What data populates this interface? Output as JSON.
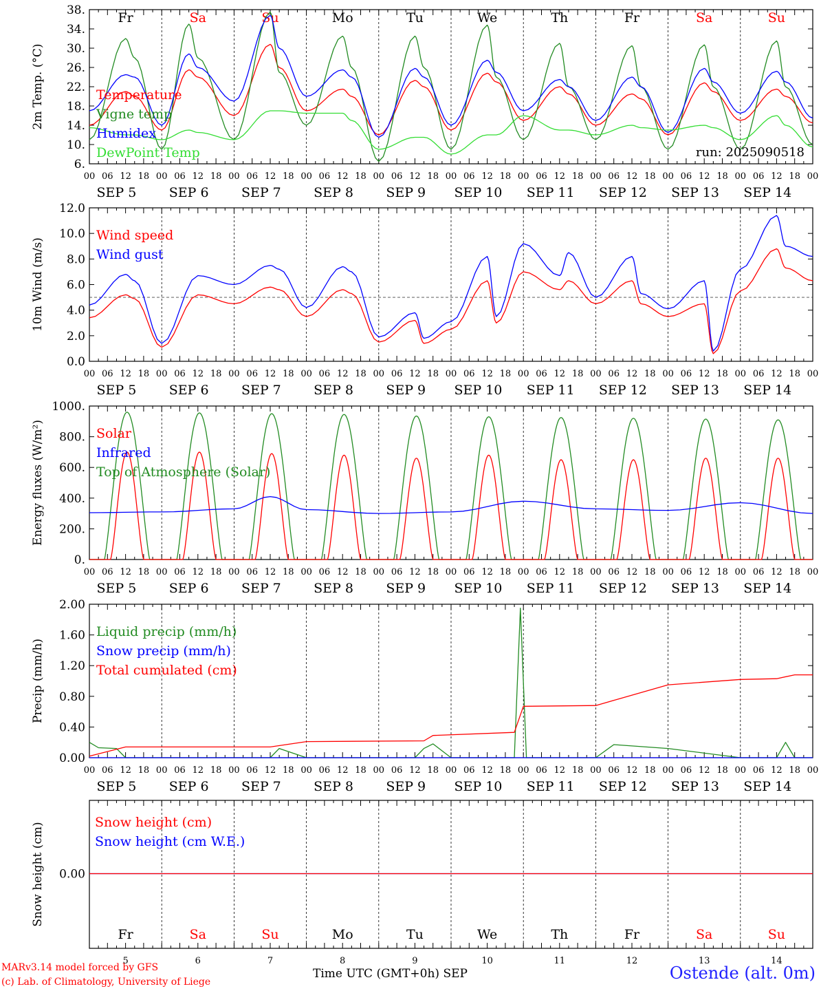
{
  "chart_data": [
    {
      "type": "line",
      "ylabel": "2m Temp. (°C)",
      "ylim": [
        6,
        38
      ],
      "yticks": [
        "6.",
        "10.",
        "14.",
        "18.",
        "22.",
        "26.",
        "30.",
        "34.",
        "38."
      ],
      "annotation": "run: 2025090518",
      "days": [
        {
          "label": "Fr",
          "color": "#000000"
        },
        {
          "label": "Sa",
          "color": "#ff0000"
        },
        {
          "label": "Su",
          "color": "#ff0000"
        },
        {
          "label": "Mo",
          "color": "#000000"
        },
        {
          "label": "Tu",
          "color": "#000000"
        },
        {
          "label": "We",
          "color": "#000000"
        },
        {
          "label": "Th",
          "color": "#000000"
        },
        {
          "label": "Fr",
          "color": "#000000"
        },
        {
          "label": "Sa",
          "color": "#ff0000"
        },
        {
          "label": "Su",
          "color": "#ff0000"
        }
      ],
      "x_hours": [
        0,
        12,
        15,
        24,
        33,
        36,
        48,
        60,
        63,
        72,
        84,
        87,
        96,
        108,
        111,
        120,
        132,
        135,
        144,
        156,
        159,
        168,
        180,
        183,
        192,
        204,
        207,
        216,
        228,
        231,
        240
      ],
      "series": [
        {
          "name": "Temperature",
          "color": "#ff0000",
          "values": [
            14,
            21,
            20,
            13,
            25.5,
            24,
            16,
            30.8,
            26,
            17,
            21.5,
            20,
            12,
            23.3,
            22,
            13,
            24.8,
            23,
            15,
            22,
            20.5,
            14,
            20.5,
            19.5,
            12,
            22.8,
            21,
            15,
            21.5,
            20,
            14.5
          ]
        },
        {
          "name": "Vigne temp",
          "color": "#228b22",
          "values": [
            11,
            32,
            28,
            9,
            35,
            28,
            11,
            37.5,
            25,
            14,
            32.5,
            26,
            6.5,
            32.5,
            26,
            9,
            34.8,
            24,
            11,
            31,
            22,
            11,
            30.5,
            22,
            9,
            30.7,
            22,
            9,
            31.5,
            22,
            10
          ]
        },
        {
          "name": "Humidex",
          "color": "#0000ff",
          "values": [
            17,
            24.5,
            24,
            14,
            28.8,
            26,
            19,
            36.8,
            30,
            20,
            25.5,
            24,
            11.5,
            25.8,
            24,
            14,
            27.5,
            25,
            17,
            23.5,
            22,
            15,
            24,
            22,
            12.5,
            25.8,
            23,
            16.5,
            25.2,
            23,
            15.5
          ]
        },
        {
          "name": "DewPoint Temp",
          "color": "#33dd33",
          "values": [
            13.5,
            12,
            12,
            11,
            13,
            12.5,
            11,
            17,
            17,
            16.5,
            16.5,
            15,
            9,
            11.5,
            11.5,
            8,
            12,
            12,
            16,
            13,
            13,
            12,
            14,
            13.5,
            13,
            14,
            13.5,
            11,
            16,
            14,
            9.5
          ]
        }
      ]
    },
    {
      "type": "line",
      "ylabel": "10m Wind (m/s)",
      "ylim": [
        0,
        12
      ],
      "yticks": [
        "0.0",
        "2.0",
        "4.0",
        "6.0",
        "8.0",
        "10.0",
        "12.0"
      ],
      "ref_line": 5,
      "x_hours": [
        0,
        12,
        15,
        24,
        36,
        48,
        60,
        63,
        72,
        84,
        87,
        96,
        108,
        111,
        120,
        132,
        135,
        144,
        156,
        159,
        168,
        180,
        183,
        192,
        204,
        207,
        216,
        228,
        231,
        240
      ],
      "series": [
        {
          "name": "Wind speed",
          "color": "#ff0000",
          "values": [
            3.4,
            5.2,
            4.9,
            1.1,
            5.2,
            4.5,
            5.8,
            5.6,
            3.5,
            5.6,
            5.3,
            1.5,
            3.2,
            1.4,
            2.5,
            6.3,
            3,
            7,
            5.6,
            6.3,
            4.5,
            6.3,
            4.5,
            3.5,
            4.5,
            0.6,
            5.5,
            8.8,
            7.3,
            6.3
          ]
        },
        {
          "name": "Wind gust",
          "color": "#0000ff",
          "values": [
            4.4,
            6.8,
            6.3,
            1.4,
            6.7,
            6,
            7.5,
            7.2,
            4.2,
            7.4,
            7,
            1.9,
            3.8,
            1.8,
            3.1,
            8.2,
            3.5,
            9.2,
            6.7,
            8.5,
            5,
            8.2,
            5.3,
            4.1,
            6.3,
            0.8,
            7.2,
            11.4,
            9,
            8.2
          ]
        }
      ]
    },
    {
      "type": "line",
      "ylabel": "Energy fluxes (W/m²)",
      "ylim": [
        0,
        1000
      ],
      "yticks": [
        "0.",
        "200.",
        "400.",
        "600.",
        "800.",
        "1000."
      ],
      "series": [
        {
          "name": "Solar",
          "color": "#ff0000",
          "day_peaks": [
            700,
            700,
            690,
            680,
            660,
            680,
            650,
            650,
            660,
            660
          ]
        },
        {
          "name": "Infrared",
          "color": "#0000ff",
          "x_hours": [
            0,
            24,
            48,
            60,
            72,
            96,
            120,
            144,
            168,
            192,
            216,
            240
          ],
          "values": [
            305,
            310,
            330,
            410,
            325,
            300,
            310,
            380,
            330,
            320,
            370,
            300
          ]
        },
        {
          "name": "Top of Atmosphere (Solar)",
          "color": "#228b22",
          "day_peaks": [
            960,
            955,
            950,
            945,
            935,
            930,
            925,
            920,
            915,
            910
          ]
        }
      ]
    },
    {
      "type": "line",
      "ylabel": "Precip (mm/h)",
      "ylim": [
        0,
        2
      ],
      "yticks": [
        "0.00",
        "0.40",
        "0.80",
        "1.20",
        "1.60",
        "2.00"
      ],
      "series": [
        {
          "name": "Liquid precip (mm/h)",
          "color": "#228b22",
          "x_hours": [
            0,
            3,
            9,
            12,
            60,
            63,
            72,
            108,
            111,
            114,
            120,
            141,
            143,
            145,
            168,
            174,
            192,
            216,
            228,
            231,
            234,
            240
          ],
          "values": [
            0.2,
            0.13,
            0.12,
            0,
            0,
            0.12,
            0,
            0,
            0.12,
            0.18,
            0,
            0,
            1.95,
            0,
            0,
            0.17,
            0.12,
            0,
            0,
            0.2,
            0,
            0
          ]
        },
        {
          "name": "Snow precip (mm/h)",
          "color": "#0000ff",
          "x_hours": [
            0,
            240
          ],
          "values": [
            0,
            0
          ]
        },
        {
          "name": "Total cumulated (cm)",
          "color": "#ff0000",
          "x_hours": [
            0,
            12,
            60,
            72,
            111,
            114,
            141,
            144,
            168,
            192,
            216,
            228,
            234,
            240
          ],
          "values": [
            0.02,
            0.14,
            0.14,
            0.21,
            0.22,
            0.29,
            0.33,
            0.67,
            0.68,
            0.95,
            1.02,
            1.03,
            1.08,
            1.08
          ]
        }
      ]
    },
    {
      "type": "line",
      "ylabel": "Snow height (cm)",
      "yticks": [
        "0.00"
      ],
      "series": [
        {
          "name": "Snow height (cm)",
          "color": "#ff0000",
          "x_hours": [
            0,
            240
          ],
          "values": [
            0,
            0
          ]
        },
        {
          "name": "Snow height (cm W.E.)",
          "color": "#0000ff",
          "x_hours": [
            0,
            240
          ],
          "values": [
            0,
            0
          ]
        }
      ]
    }
  ],
  "date_labels": [
    "SEP 5",
    "SEP 6",
    "SEP 7",
    "SEP 8",
    "SEP 9",
    "SEP 10",
    "SEP 11",
    "SEP 12",
    "SEP 13",
    "SEP 14"
  ],
  "hour_ticks": [
    "00",
    "06",
    "12",
    "18"
  ],
  "bottom_day_numbers": [
    "5",
    "6",
    "7",
    "8",
    "9",
    "10",
    "11",
    "12",
    "13",
    "14"
  ],
  "xtitle": "Time UTC (GMT+0h) SEP",
  "credit_line1": "MARv3.14 model forced by GFS",
  "credit_line2": "(c) Lab. of Climatology, University of Liege",
  "station": "Ostende (alt. 0m)"
}
